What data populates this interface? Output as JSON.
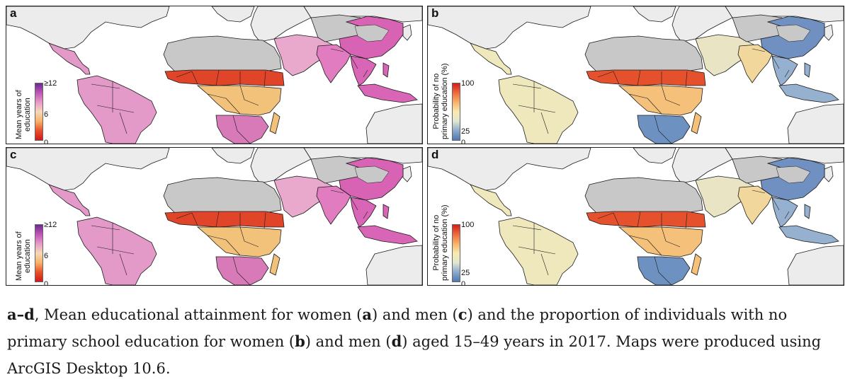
{
  "panels": [
    {
      "id": "a",
      "label": "a",
      "variable": "mean_years_education",
      "sex": "women",
      "legend": {
        "title_line1": "Mean years of",
        "title_line2": "education",
        "ticks": [
          "≥12",
          "6",
          "0"
        ],
        "gradient": [
          "#6a2c8f",
          "#c056b6",
          "#e79ac8",
          "#f5d9b8",
          "#f7b26a",
          "#e8522a",
          "#d0191b"
        ]
      }
    },
    {
      "id": "b",
      "label": "b",
      "variable": "prob_no_primary",
      "sex": "women",
      "legend": {
        "title_line1": "Probability of no",
        "title_line2": "primary education (%)",
        "ticks": [
          "100",
          "25",
          "0"
        ],
        "gradient": [
          "#d21f1b",
          "#ef6a3a",
          "#f8b26a",
          "#f8e9b0",
          "#dfe7d0",
          "#8aa9cc",
          "#4f78b1"
        ]
      }
    },
    {
      "id": "c",
      "label": "c",
      "variable": "mean_years_education",
      "sex": "men",
      "legend": {
        "title_line1": "Mean years of",
        "title_line2": "education",
        "ticks": [
          "≥12",
          "6",
          "0"
        ],
        "gradient": [
          "#6a2c8f",
          "#c056b6",
          "#e79ac8",
          "#f5d9b8",
          "#f7b26a",
          "#e8522a",
          "#d0191b"
        ]
      }
    },
    {
      "id": "d",
      "label": "d",
      "variable": "prob_no_primary",
      "sex": "men",
      "legend": {
        "title_line1": "Probability of no",
        "title_line2": "primary education (%)",
        "ticks": [
          "100",
          "25",
          "0"
        ],
        "gradient": [
          "#d21f1b",
          "#ef6a3a",
          "#f8b26a",
          "#f8e9b0",
          "#dfe7d0",
          "#8aa9cc",
          "#4f78b1"
        ]
      }
    }
  ],
  "colors": {
    "no_data": "#c8c8c8",
    "outside": "#ececec",
    "border": "#1a1a1a",
    "mean_years": {
      "latam": "#e39ac8",
      "sahel": "#e0452a",
      "central_africa": "#f3c27a",
      "southern_africa": "#d97ab8",
      "south_asia": "#e07cbf",
      "southeast_asia": "#d865b5",
      "china": "#d863b4",
      "middle_east": "#e8a9cc",
      "north_africa": "#e59cc7"
    },
    "no_primary": {
      "latam": "#efe8bc",
      "sahel": "#e4512c",
      "central_africa": "#f4c07a",
      "southern_africa": "#6d91c0",
      "south_asia": "#f1d79c",
      "southeast_asia": "#96b0cf",
      "china": "#6f90c1",
      "middle_east": "#e9e4c4",
      "north_africa": "#eec996"
    }
  },
  "caption": {
    "range_label": "a–d",
    "part1": ", Mean educational attainment for women (",
    "a": "a",
    "part2": ") and men (",
    "c": "c",
    "part3": ") and the proportion of individuals with no primary school education for women (",
    "b": "b",
    "part4": ") and men (",
    "d": "d",
    "part5": ") aged 15–49 years in 2017. Maps were produced using ArcGIS Desktop 10.6."
  }
}
